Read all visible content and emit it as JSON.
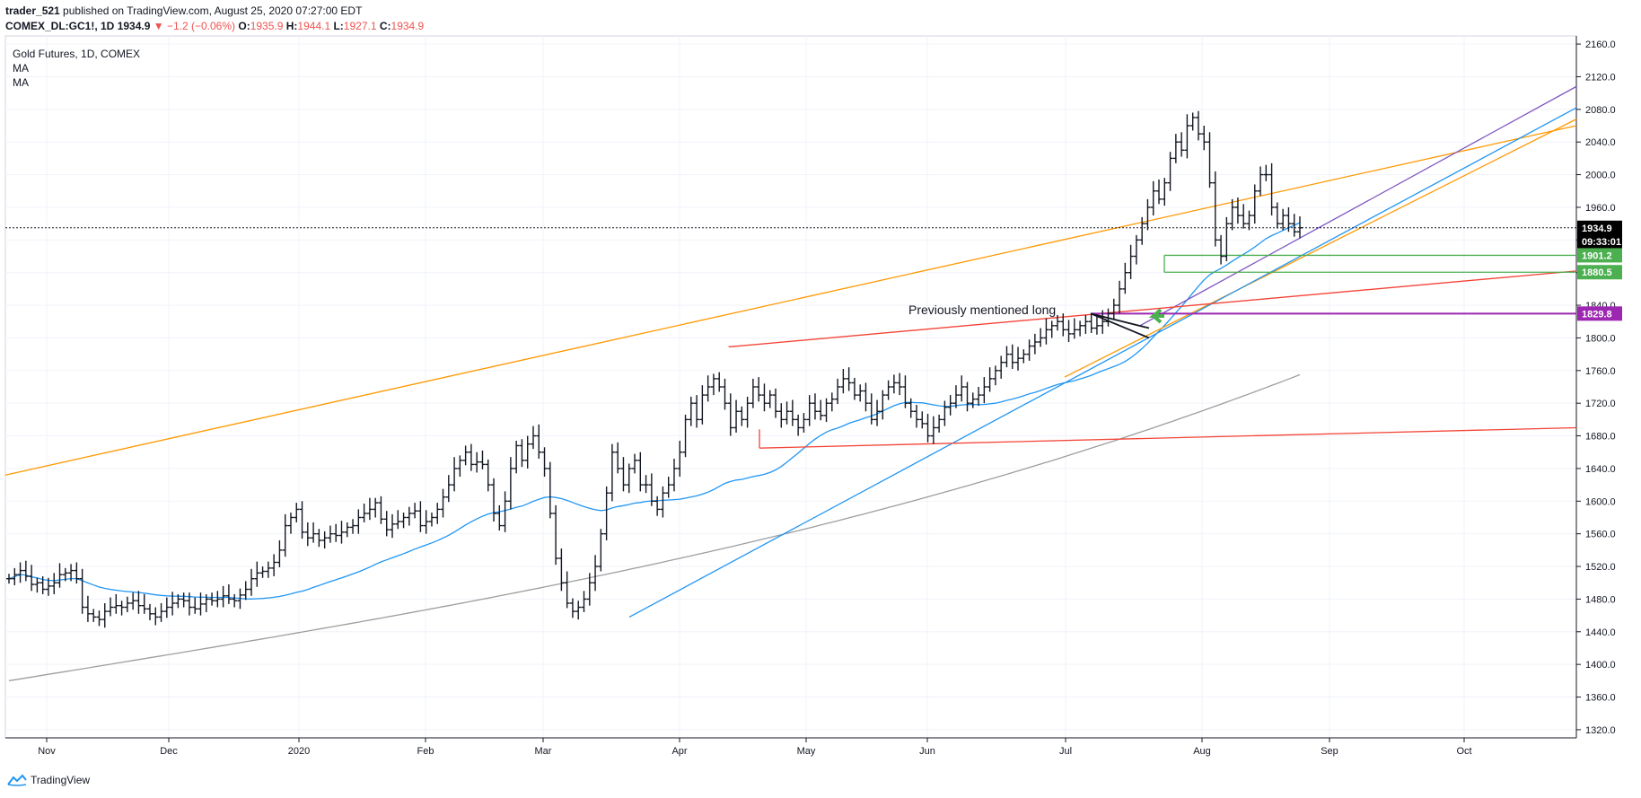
{
  "header": {
    "author": "trader_521",
    "published": " published on TradingView.com, August 25, 2020 07:27:00 EDT",
    "symbol": "COMEX_DL:GC1!, 1D",
    "last": "1934.9",
    "change": "▼ −1.2 (−0.06%)",
    "o_label": "O:",
    "o": "1935.9",
    "h_label": "H:",
    "h": "1944.1",
    "l_label": "L:",
    "l": "1927.1",
    "c_label": "C:",
    "c": "1934.9"
  },
  "legend": {
    "title": "Gold Futures, 1D, COMEX",
    "ma1": "MA",
    "ma2": "MA"
  },
  "annotation": "Previously mentioned long",
  "footer": {
    "brand": "TradingView",
    "logo_icon": "tradingview-logo-icon"
  },
  "chart_data": {
    "type": "ohlc",
    "x_ticks": [
      "Nov",
      "Dec",
      "2020",
      "Feb",
      "Mar",
      "Apr",
      "May",
      "Jun",
      "Jul",
      "Aug",
      "Sep",
      "Oct"
    ],
    "y_ticks": [
      1320,
      1360,
      1400,
      1440,
      1480,
      1520,
      1560,
      1600,
      1640,
      1680,
      1720,
      1760,
      1800,
      1840,
      1880,
      1920,
      1960,
      2000,
      2040,
      2080,
      2120,
      2160
    ],
    "ylim": [
      1310,
      2170
    ],
    "price_tags": [
      {
        "value": "1934.9",
        "color": "#000000"
      },
      {
        "value": "09:33:01",
        "color": "#000000"
      },
      {
        "value": "1901.2",
        "color": "#4caf50"
      },
      {
        "value": "1880.5",
        "color": "#4caf50"
      },
      {
        "value": "1829.8",
        "color": "#9c27b0"
      }
    ],
    "close_series": [
      1505,
      1510,
      1515,
      1508,
      1498,
      1500,
      1492,
      1496,
      1500,
      1510,
      1512,
      1515,
      1505,
      1470,
      1462,
      1458,
      1455,
      1465,
      1470,
      1472,
      1470,
      1475,
      1478,
      1472,
      1468,
      1462,
      1458,
      1465,
      1470,
      1475,
      1480,
      1478,
      1470,
      1468,
      1474,
      1480,
      1478,
      1480,
      1484,
      1480,
      1478,
      1485,
      1492,
      1505,
      1512,
      1514,
      1518,
      1525,
      1540,
      1570,
      1580,
      1590,
      1562,
      1555,
      1560,
      1552,
      1555,
      1560,
      1558,
      1562,
      1568,
      1570,
      1580,
      1585,
      1590,
      1598,
      1578,
      1565,
      1572,
      1575,
      1580,
      1585,
      1588,
      1570,
      1575,
      1580,
      1590,
      1605,
      1620,
      1640,
      1650,
      1660,
      1645,
      1648,
      1645,
      1620,
      1585,
      1570,
      1600,
      1640,
      1668,
      1650,
      1670,
      1680,
      1660,
      1640,
      1585,
      1530,
      1500,
      1475,
      1465,
      1470,
      1480,
      1500,
      1520,
      1560,
      1610,
      1660,
      1640,
      1620,
      1640,
      1650,
      1620,
      1620,
      1600,
      1590,
      1610,
      1620,
      1640,
      1660,
      1700,
      1720,
      1700,
      1730,
      1740,
      1750,
      1740,
      1720,
      1690,
      1710,
      1700,
      1720,
      1740,
      1730,
      1720,
      1730,
      1710,
      1700,
      1710,
      1700,
      1690,
      1700,
      1720,
      1710,
      1705,
      1720,
      1725,
      1740,
      1750,
      1745,
      1730,
      1735,
      1720,
      1700,
      1710,
      1730,
      1740,
      1745,
      1740,
      1720,
      1710,
      1700,
      1695,
      1680,
      1690,
      1700,
      1715,
      1720,
      1730,
      1740,
      1720,
      1725,
      1730,
      1740,
      1750,
      1760,
      1770,
      1780,
      1770,
      1775,
      1780,
      1790,
      1795,
      1800,
      1810,
      1815,
      1820,
      1810,
      1805,
      1810,
      1815,
      1820,
      1812,
      1815,
      1820,
      1830,
      1840,
      1860,
      1880,
      1900,
      1920,
      1940,
      1960,
      1980,
      1970,
      1990,
      2020,
      2040,
      2030,
      2060,
      2070,
      2050,
      2040,
      1990,
      1920,
      1900,
      1940,
      1960,
      1950,
      1940,
      1950,
      1980,
      2000,
      2000,
      1960,
      1940,
      1950,
      1940,
      1930,
      1934.9
    ],
    "drawn_lines": [
      "orange trend lines",
      "purple trend line",
      "blue trend lines",
      "red trend lines",
      "green horizontal zones",
      "purple horizontal level"
    ],
    "series": [
      {
        "type": "moving-average",
        "color": "#2196f3"
      },
      {
        "type": "moving-average",
        "color": "#9e9e9e"
      }
    ],
    "grid": true
  }
}
